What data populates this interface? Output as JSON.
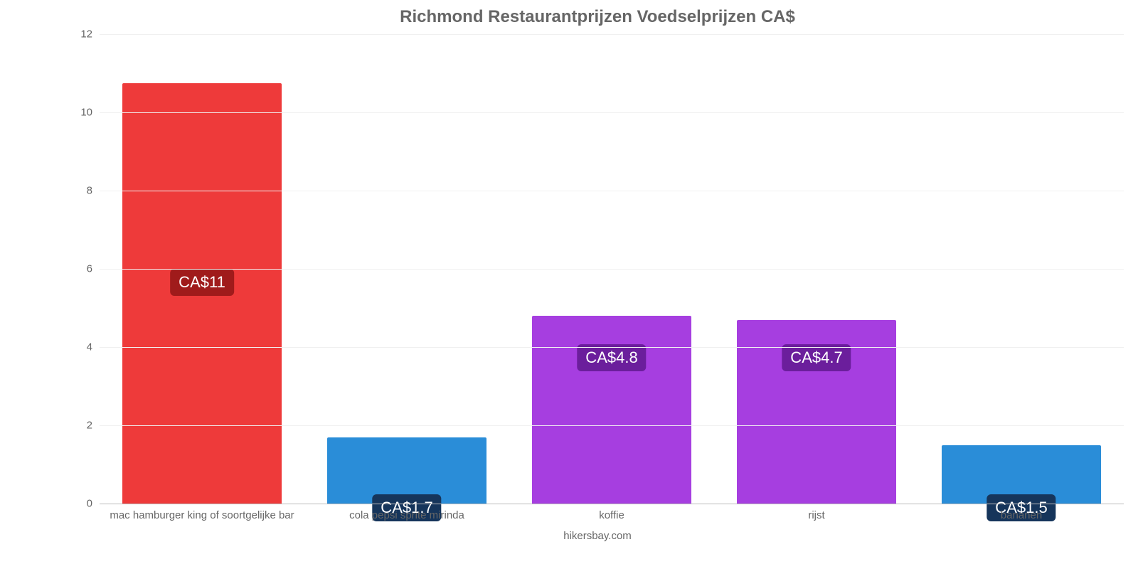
{
  "chart": {
    "type": "bar",
    "title": "Richmond Restaurantprijzen Voedselprijzen CA$",
    "title_color": "#666666",
    "title_fontsize": 24,
    "background_color": "#ffffff",
    "grid_color": "#f0f0f0",
    "baseline_color": "#bbbbbb",
    "axis_text_color": "#666666",
    "axis_fontsize": 15,
    "ylim_min": 0,
    "ylim_max": 12,
    "ytick_step": 2,
    "yticks": [
      0,
      2,
      4,
      6,
      8,
      10,
      12
    ],
    "bar_width_ratio": 0.78,
    "categories": [
      "mac hamburger king of soortgelijke bar",
      "cola pepsi sprite mirinda",
      "koffie",
      "rijst",
      "bananen"
    ],
    "values": [
      10.75,
      1.7,
      4.8,
      4.7,
      1.5
    ],
    "value_labels": [
      "CA$11",
      "CA$1.7",
      "CA$4.8",
      "CA$4.7",
      "CA$1.5"
    ],
    "bar_colors": [
      "#ee3a3a",
      "#2a8dd8",
      "#a63ee0",
      "#a63ee0",
      "#2a8dd8"
    ],
    "label_bg_colors": [
      "#a01b1b",
      "#16355b",
      "#6b1e9c",
      "#6b1e9c",
      "#16355b"
    ],
    "label_text_color": "#ffffff",
    "label_fontsize": 22,
    "label_vertical_offsets": [
      0.5,
      0.98,
      0.66,
      0.66,
      0.98
    ],
    "attribution": "hikersbay.com"
  }
}
